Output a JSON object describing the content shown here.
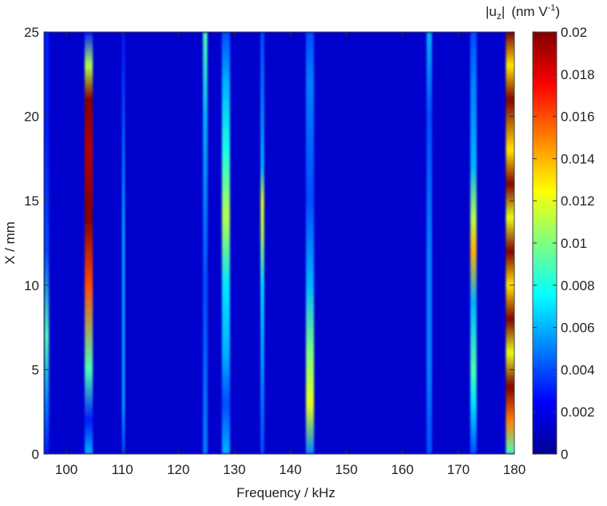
{
  "chart_data": {
    "type": "heatmap",
    "xlabel": "Frequency / kHz",
    "ylabel": "X / mm",
    "colorbar_label_parts": {
      "bar_left": "|",
      "var": "u",
      "sub": "z",
      "bar_right": "|",
      "unit_open": "(nm V",
      "sup": "-1",
      "unit_close": ")"
    },
    "colormap": "jet",
    "xlim": [
      96,
      180
    ],
    "ylim": [
      0,
      25
    ],
    "clim": [
      0,
      0.02
    ],
    "x_ticks": [
      100,
      110,
      120,
      130,
      140,
      150,
      160,
      170,
      180
    ],
    "y_ticks": [
      0,
      5,
      10,
      15,
      20,
      25
    ],
    "colorbar_ticks": [
      {
        "value": 0,
        "label": "0"
      },
      {
        "value": 0.002,
        "label": "0.002"
      },
      {
        "value": 0.004,
        "label": "0.004"
      },
      {
        "value": 0.006,
        "label": "0.006"
      },
      {
        "value": 0.008,
        "label": "0.008"
      },
      {
        "value": 0.01,
        "label": "0.01"
      },
      {
        "value": 0.012,
        "label": "0.012"
      },
      {
        "value": 0.014,
        "label": "0.014"
      },
      {
        "value": 0.016,
        "label": "0.016"
      },
      {
        "value": 0.018,
        "label": "0.018"
      },
      {
        "value": 0.02,
        "label": "0.02"
      }
    ],
    "background_value": 0.0015,
    "resonance_bands": [
      {
        "f": 96.5,
        "width_khz": 0.5,
        "profile": [
          [
            0,
            0.003
          ],
          [
            3,
            0.005
          ],
          [
            7,
            0.009
          ],
          [
            12,
            0.004
          ],
          [
            20,
            0.003
          ],
          [
            25,
            0.003
          ]
        ]
      },
      {
        "f": 104,
        "width_khz": 0.9,
        "profile": [
          [
            0,
            0.006
          ],
          [
            2,
            0.003
          ],
          [
            5,
            0.009
          ],
          [
            10,
            0.016
          ],
          [
            14,
            0.02
          ],
          [
            18,
            0.019
          ],
          [
            21,
            0.02
          ],
          [
            23,
            0.011
          ],
          [
            25,
            0.003
          ]
        ]
      },
      {
        "f": 110.2,
        "width_khz": 0.3,
        "profile": [
          [
            0,
            0.004
          ],
          [
            3,
            0.006
          ],
          [
            13,
            0.006
          ],
          [
            25,
            0.003
          ]
        ]
      },
      {
        "f": 124.8,
        "width_khz": 0.5,
        "profile": [
          [
            0,
            0.005
          ],
          [
            10,
            0.004
          ],
          [
            20,
            0.006
          ],
          [
            25,
            0.009
          ]
        ]
      },
      {
        "f": 128.5,
        "width_khz": 0.9,
        "profile": [
          [
            0,
            0.006
          ],
          [
            3,
            0.004
          ],
          [
            6,
            0.006
          ],
          [
            10,
            0.007
          ],
          [
            14,
            0.011
          ],
          [
            18,
            0.008
          ],
          [
            22,
            0.006
          ],
          [
            25,
            0.004
          ]
        ]
      },
      {
        "f": 135,
        "width_khz": 0.4,
        "profile": [
          [
            0,
            0.004
          ],
          [
            10,
            0.007
          ],
          [
            13,
            0.011
          ],
          [
            15,
            0.012
          ],
          [
            17,
            0.006
          ],
          [
            25,
            0.004
          ]
        ]
      },
      {
        "f": 143.5,
        "width_khz": 0.9,
        "profile": [
          [
            0,
            0.005
          ],
          [
            3,
            0.012
          ],
          [
            6,
            0.01
          ],
          [
            10,
            0.006
          ],
          [
            15,
            0.004
          ],
          [
            22,
            0.005
          ],
          [
            25,
            0.004
          ]
        ]
      },
      {
        "f": 164.8,
        "width_khz": 0.6,
        "profile": [
          [
            0,
            0.004
          ],
          [
            5,
            0.005
          ],
          [
            12,
            0.005
          ],
          [
            20,
            0.004
          ],
          [
            25,
            0.006
          ]
        ]
      },
      {
        "f": 172.7,
        "width_khz": 0.7,
        "profile": [
          [
            0,
            0.004
          ],
          [
            3,
            0.007
          ],
          [
            5,
            0.009
          ],
          [
            9,
            0.006
          ],
          [
            12,
            0.014
          ],
          [
            14,
            0.011
          ],
          [
            17,
            0.006
          ],
          [
            22,
            0.005
          ],
          [
            25,
            0.004
          ]
        ]
      },
      {
        "f": 179.6,
        "width_khz": 1.4,
        "profile": [
          [
            0,
            0.009
          ],
          [
            2,
            0.015
          ],
          [
            4,
            0.02
          ],
          [
            6,
            0.012
          ],
          [
            8,
            0.02
          ],
          [
            10,
            0.013
          ],
          [
            12,
            0.02
          ],
          [
            14,
            0.012
          ],
          [
            16,
            0.02
          ],
          [
            18,
            0.013
          ],
          [
            21,
            0.02
          ],
          [
            23,
            0.013
          ],
          [
            25,
            0.02
          ]
        ]
      }
    ]
  }
}
